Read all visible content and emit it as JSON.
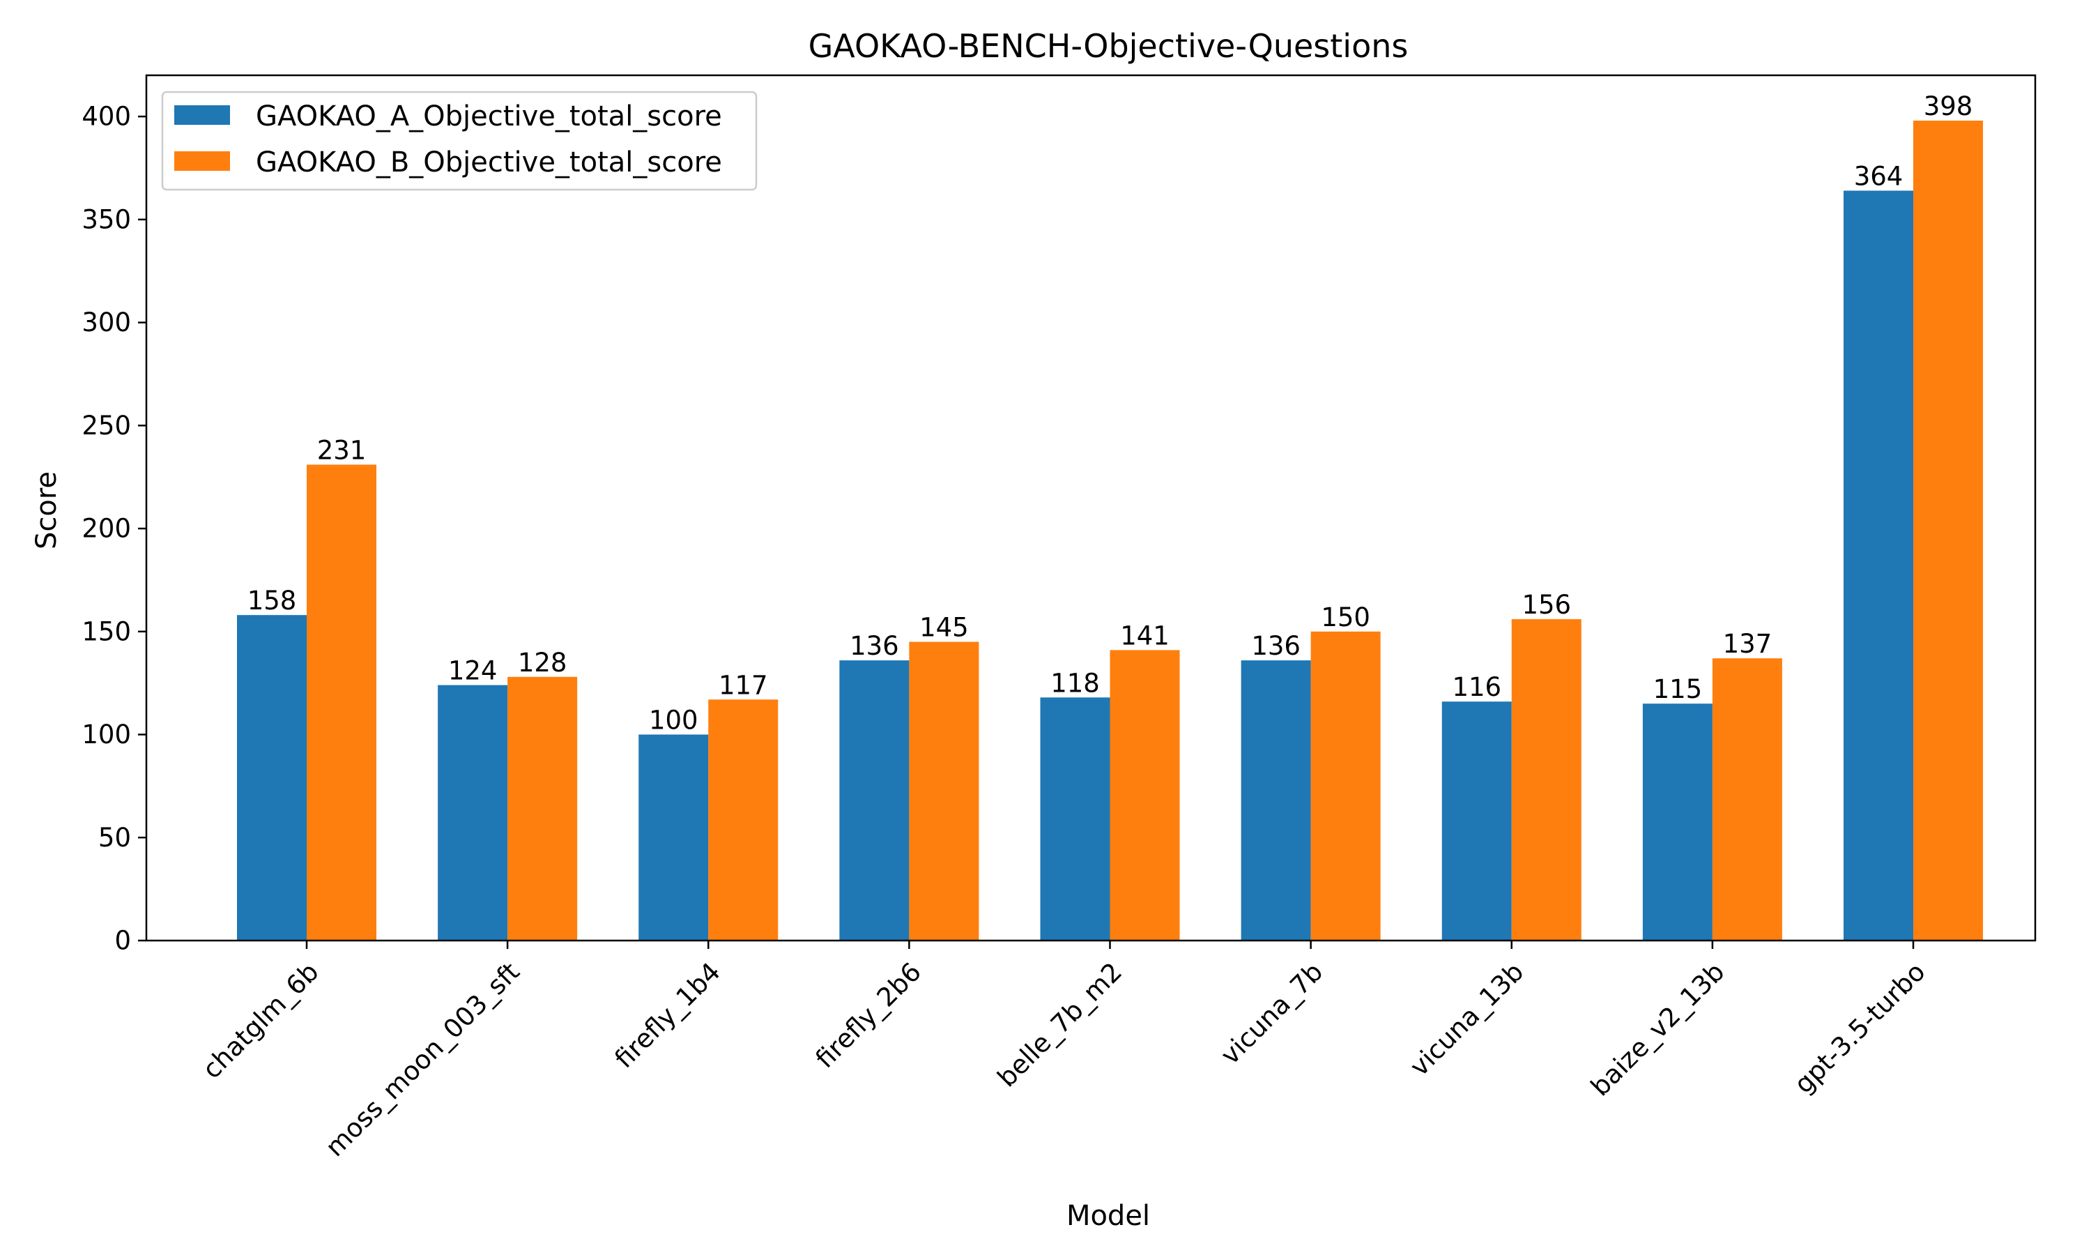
{
  "chart_data": {
    "type": "bar",
    "title": "GAOKAO-BENCH-Objective-Questions",
    "xlabel": "Model",
    "ylabel": "Score",
    "categories": [
      "chatglm_6b",
      "moss_moon_003_sft",
      "firefly_1b4",
      "firefly_2b6",
      "belle_7b_m2",
      "vicuna_7b",
      "vicuna_13b",
      "baize_v2_13b",
      "gpt-3.5-turbo"
    ],
    "series": [
      {
        "name": "GAOKAO_A_Objective_total_score",
        "color": "#1f77b4",
        "values": [
          158,
          124,
          100,
          136,
          118,
          136,
          116,
          115,
          364
        ]
      },
      {
        "name": "GAOKAO_B_Objective_total_score",
        "color": "#ff7f0e",
        "values": [
          231,
          128,
          117,
          145,
          141,
          150,
          156,
          137,
          398
        ]
      }
    ],
    "ylim": [
      0,
      420
    ],
    "yticks": [
      0,
      50,
      100,
      150,
      200,
      250,
      300,
      350,
      400
    ],
    "grid": false,
    "legend_position": "top-left",
    "data_labels": true
  }
}
